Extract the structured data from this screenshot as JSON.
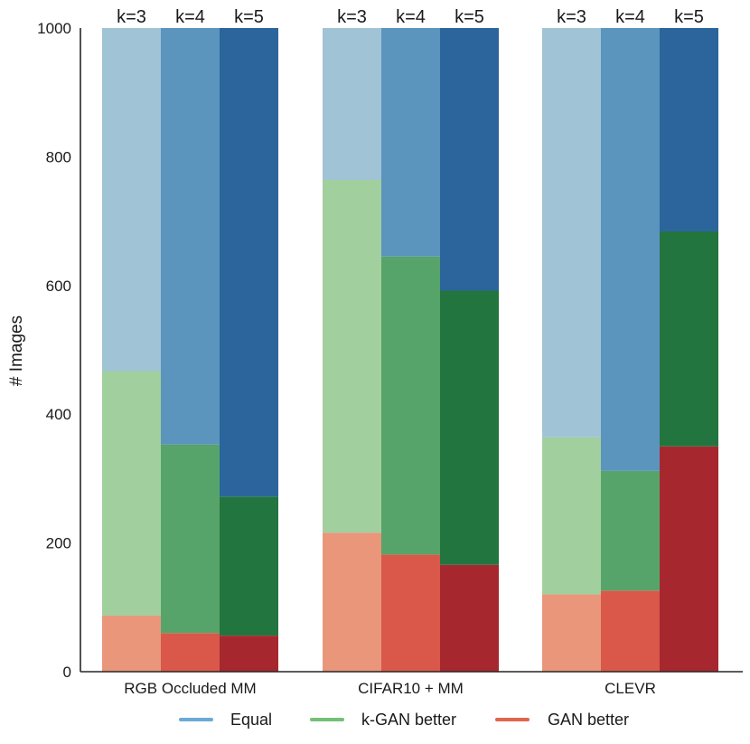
{
  "chart_data": {
    "type": "bar",
    "stacked": true,
    "groups": [
      "RGB Occluded MM",
      "CIFAR10 + MM",
      "CLEVR"
    ],
    "bar_labels": [
      "k=3",
      "k=4",
      "k=5"
    ],
    "ylabel": "# Images",
    "xlabel": "",
    "ylim": [
      0,
      1000
    ],
    "yticks": [
      0,
      200,
      400,
      600,
      800,
      1000
    ],
    "legend_position": "bottom",
    "series": [
      {
        "name": "GAN better",
        "shades": [
          "#e9967a",
          "#d9584a",
          "#a6282e"
        ],
        "values": [
          [
            87,
            60,
            56
          ],
          [
            216,
            182,
            166
          ],
          [
            120,
            126,
            350
          ]
        ]
      },
      {
        "name": "k-GAN better",
        "shades": [
          "#a1cf9e",
          "#57a46a",
          "#23753f"
        ],
        "values": [
          [
            380,
            293,
            216
          ],
          [
            548,
            463,
            426
          ],
          [
            244,
            186,
            334
          ]
        ]
      },
      {
        "name": "Equal",
        "shades": [
          "#a0c3d6",
          "#5b94bd",
          "#2b659c"
        ],
        "values": [
          [
            533,
            647,
            728
          ],
          [
            236,
            355,
            408
          ],
          [
            636,
            688,
            316
          ]
        ]
      }
    ],
    "legend": [
      {
        "name": "Equal",
        "color": "#6aaad6"
      },
      {
        "name": "k-GAN better",
        "color": "#74c176"
      },
      {
        "name": "GAN better",
        "color": "#e2644f"
      }
    ]
  }
}
